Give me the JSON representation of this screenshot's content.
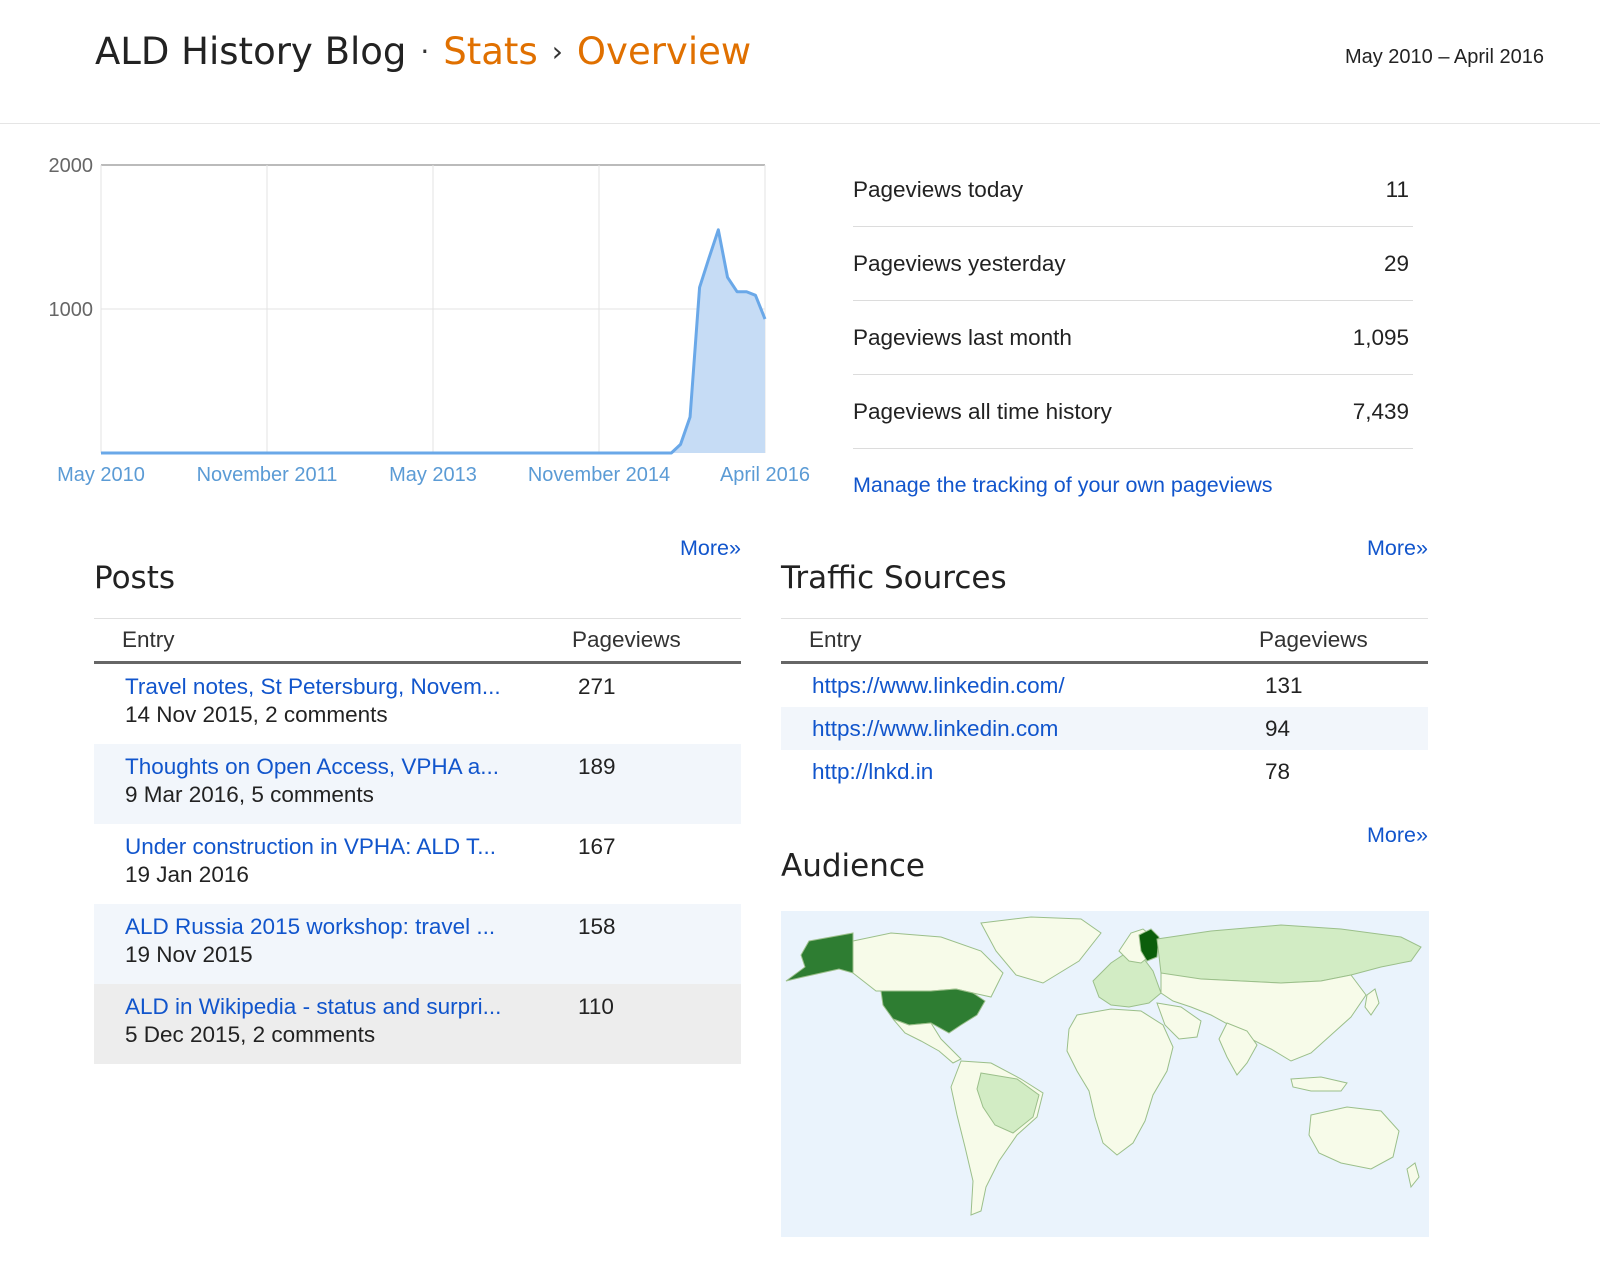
{
  "header": {
    "blog_name": "ALD History Blog",
    "dot": "·",
    "crumb_stats": "Stats",
    "chevron": "›",
    "crumb_overview": "Overview",
    "date_range": "May 2010 – April 2016"
  },
  "colors": {
    "accent_orange": "#e07000",
    "link_blue": "#1155cc",
    "chart_line": "#6aa8e8",
    "chart_fill": "#c6dcf5",
    "map_ocean": "#eaf3fc",
    "map_land": "#f7fbe9",
    "map_light_green": "#d2ecc4",
    "map_dark_green": "#2e7d32",
    "map_darkest_green": "#0b5e0b"
  },
  "chart_data": {
    "type": "area",
    "y_ticks": [
      "2000",
      "1000"
    ],
    "x_ticks": [
      "May 2010",
      "November 2011",
      "May 2013",
      "November 2014",
      "April 2016"
    ],
    "ylim": [
      0,
      2000
    ],
    "grid": true,
    "x": [
      "2010-05",
      "2014-10",
      "2015-06",
      "2015-07",
      "2015-08",
      "2015-09",
      "2015-10",
      "2015-11",
      "2015-12",
      "2016-01",
      "2016-02",
      "2016-03",
      "2016-04"
    ],
    "values": [
      0,
      0,
      0,
      60,
      250,
      1150,
      1350,
      1550,
      1220,
      1120,
      1120,
      1095,
      930
    ]
  },
  "stats": [
    {
      "label": "Pageviews today",
      "value": "11"
    },
    {
      "label": "Pageviews yesterday",
      "value": "29"
    },
    {
      "label": "Pageviews last month",
      "value": "1,095"
    },
    {
      "label": "Pageviews all time history",
      "value": "7,439"
    }
  ],
  "manage_link": "Manage the tracking of your own pageviews",
  "posts": {
    "title": "Posts",
    "more": "More»",
    "col_entry": "Entry",
    "col_pageviews": "Pageviews",
    "rows": [
      {
        "title": "Travel notes, St Petersburg, Novem...",
        "meta": "14 Nov 2015, 2 comments",
        "views": "271"
      },
      {
        "title": "Thoughts on Open Access, VPHA a...",
        "meta": "9 Mar 2016, 5 comments",
        "views": "189"
      },
      {
        "title": "Under construction in VPHA: ALD T...",
        "meta": "19 Jan 2016",
        "views": "167"
      },
      {
        "title": "ALD Russia 2015 workshop: travel ...",
        "meta": "19 Nov 2015",
        "views": "158"
      },
      {
        "title": "ALD in Wikipedia - status and surpri...",
        "meta": "5 Dec 2015, 2 comments",
        "views": "110"
      }
    ]
  },
  "traffic": {
    "title": "Traffic Sources",
    "more": "More»",
    "col_entry": "Entry",
    "col_pageviews": "Pageviews",
    "rows": [
      {
        "source": "https://www.linkedin.com/",
        "views": "131"
      },
      {
        "source": "https://www.linkedin.com",
        "views": "94"
      },
      {
        "source": "http://lnkd.in",
        "views": "78"
      }
    ]
  },
  "audience": {
    "title": "Audience",
    "more": "More»"
  }
}
